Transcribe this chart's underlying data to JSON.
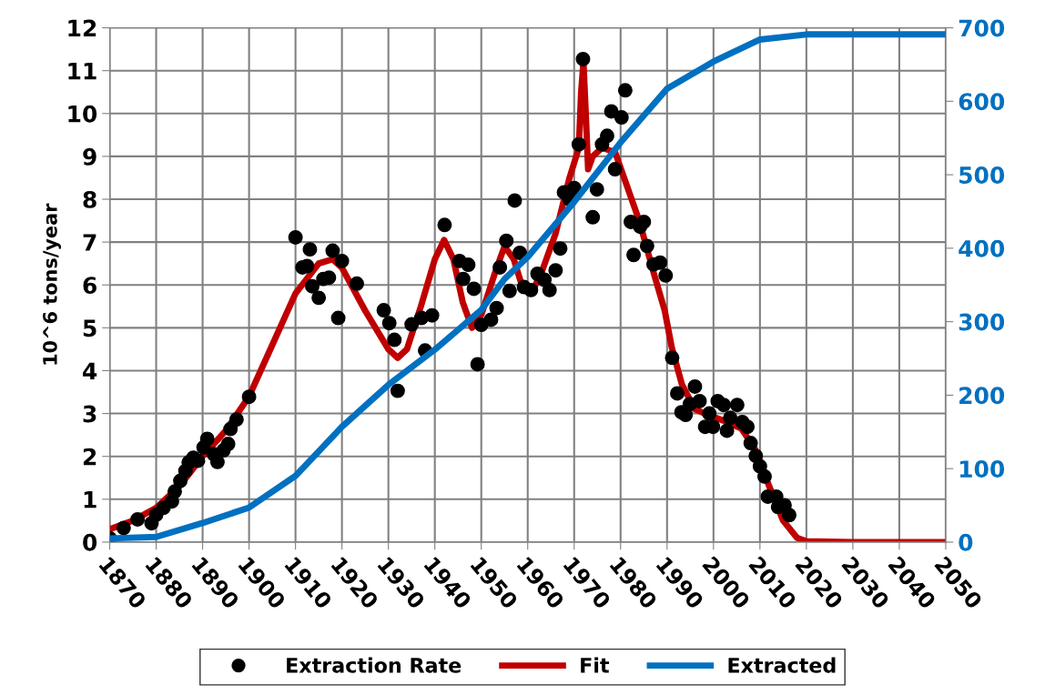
{
  "chart_data": {
    "type": "scatter",
    "ylabel": "10^6 tons/year",
    "xlim": [
      1870,
      2050
    ],
    "xticks": [
      1870,
      1880,
      1890,
      1900,
      1910,
      1920,
      1930,
      1940,
      1950,
      1960,
      1970,
      1980,
      1990,
      2000,
      2010,
      2020,
      2030,
      2040,
      2050
    ],
    "ylim": [
      0,
      12
    ],
    "yticks": [
      0,
      1,
      2,
      3,
      4,
      5,
      6,
      7,
      8,
      9,
      10,
      11,
      12
    ],
    "y2lim": [
      0,
      700
    ],
    "y2ticks": [
      0,
      100,
      200,
      300,
      400,
      500,
      600,
      700
    ],
    "grid": true,
    "legend": "bottom",
    "series": [
      {
        "name": "Extraction Rate",
        "marker": "circle",
        "color": "#000000",
        "x": [
          1870,
          1873,
          1876,
          1879,
          1880,
          1881.6,
          1883.4,
          1884,
          1885.2,
          1886.3,
          1887,
          1888,
          1889,
          1890.2,
          1891,
          1892.4,
          1893.2,
          1894.5,
          1895.5,
          1896,
          1897.3,
          1900,
          1910,
          1911.5,
          1912.5,
          1913.1,
          1913.6,
          1915,
          1916,
          1917.2,
          1918,
          1919.2,
          1920,
          1923.2,
          1929,
          1930.2,
          1931.3,
          1932,
          1935,
          1937.1,
          1937.9,
          1939.4,
          1942.1,
          1945.3,
          1946.1,
          1947.2,
          1948.4,
          1949.2,
          1950,
          1952.1,
          1953.3,
          1954,
          1955.4,
          1956.1,
          1957.2,
          1958.3,
          1959.2,
          1960.7,
          1962.1,
          1963.6,
          1964.7,
          1966,
          1967,
          1967.8,
          1969,
          1970,
          1971,
          1971.9,
          1974,
          1974.9,
          1976,
          1977.1,
          1978,
          1978.8,
          1980.2,
          1981,
          1982.2,
          1982.8,
          1984.2,
          1985,
          1985.7,
          1987.1,
          1988.5,
          1989.7,
          1991.1,
          1992.2,
          1993.1,
          1994,
          1994.9,
          1996,
          1997,
          1998.2,
          1999.1,
          1999.9,
          2000.9,
          2002.2,
          2002.9,
          2003.6,
          2005.1,
          2006.2,
          2007.3,
          2008,
          2009.1,
          2010,
          2011,
          2011.7,
          2013.5,
          2013.9,
          2015.3,
          2016.3
        ],
        "values": [
          0.09,
          0.33,
          0.53,
          0.44,
          0.64,
          0.8,
          0.95,
          1.18,
          1.43,
          1.66,
          1.86,
          1.97,
          1.9,
          2.21,
          2.41,
          2.05,
          1.87,
          2.14,
          2.29,
          2.64,
          2.86,
          3.39,
          7.11,
          6.41,
          6.44,
          6.83,
          5.97,
          5.7,
          6.14,
          6.17,
          6.8,
          5.23,
          6.56,
          6.03,
          5.41,
          5.11,
          4.72,
          3.53,
          5.08,
          5.23,
          4.47,
          5.29,
          7.4,
          6.56,
          6.14,
          6.47,
          5.91,
          4.15,
          5.07,
          5.19,
          5.46,
          6.41,
          7.03,
          5.86,
          7.97,
          6.75,
          5.95,
          5.88,
          6.26,
          6.12,
          5.88,
          6.34,
          6.85,
          8.16,
          8.0,
          8.26,
          9.28,
          11.27,
          7.58,
          8.23,
          9.28,
          9.48,
          10.05,
          8.7,
          9.91,
          10.54,
          7.47,
          6.7,
          7.36,
          7.47,
          6.91,
          6.48,
          6.52,
          6.22,
          4.3,
          3.47,
          3.03,
          2.97,
          3.22,
          3.63,
          3.29,
          2.69,
          3.0,
          2.69,
          3.29,
          3.2,
          2.6,
          2.9,
          3.2,
          2.8,
          2.69,
          2.31,
          2.01,
          1.77,
          1.53,
          1.06,
          1.06,
          0.82,
          0.86,
          0.63
        ]
      },
      {
        "name": "Fit",
        "type": "line",
        "marker": "none",
        "line_style": "solid",
        "color": "#c00000",
        "x": [
          1870,
          1875,
          1880,
          1885,
          1890,
          1895,
          1900,
          1905,
          1910,
          1915,
          1918,
          1920,
          1925,
          1930,
          1932,
          1934,
          1937,
          1940,
          1942,
          1944,
          1946,
          1948,
          1950,
          1953,
          1955,
          1957,
          1959,
          1961,
          1963,
          1966,
          1969,
          1971,
          1971.5,
          1972,
          1972.5,
          1973,
          1974,
          1976,
          1978.8,
          1984,
          1987.1,
          1989.5,
          1991,
          1993.2,
          1996,
          1999,
          2002,
          2006,
          2009,
          2012,
          2015,
          2018,
          2020,
          2030,
          2040,
          2050
        ],
        "values": [
          0.3,
          0.5,
          0.8,
          1.3,
          2.0,
          2.6,
          3.4,
          4.6,
          5.8,
          6.5,
          6.6,
          6.4,
          5.4,
          4.5,
          4.3,
          4.5,
          5.5,
          6.6,
          7.05,
          6.6,
          5.6,
          5.0,
          5.3,
          6.3,
          6.9,
          6.6,
          5.9,
          5.85,
          6.3,
          7.2,
          8.5,
          9.2,
          10.5,
          11.2,
          10.0,
          8.7,
          9.0,
          9.2,
          9.1,
          7.5,
          6.29,
          5.4,
          4.55,
          3.68,
          3.1,
          2.96,
          2.84,
          2.65,
          2.16,
          1.3,
          0.5,
          0.1,
          0.02,
          0,
          0,
          0
        ]
      },
      {
        "name": "Extracted",
        "type": "line",
        "axis": "y2",
        "marker": "none",
        "line_style": "solid",
        "color": "#0070c0",
        "x": [
          1870,
          1880,
          1890,
          1900,
          1910,
          1920,
          1930,
          1940,
          1950,
          1955,
          1960,
          1970,
          1980,
          1990,
          2000,
          2010,
          2020,
          2030,
          2040,
          2050
        ],
        "values": [
          5,
          7,
          26,
          47,
          90,
          157,
          214,
          262,
          316,
          358,
          388,
          463,
          544,
          617,
          654,
          684,
          691,
          691,
          691,
          691
        ]
      }
    ]
  }
}
